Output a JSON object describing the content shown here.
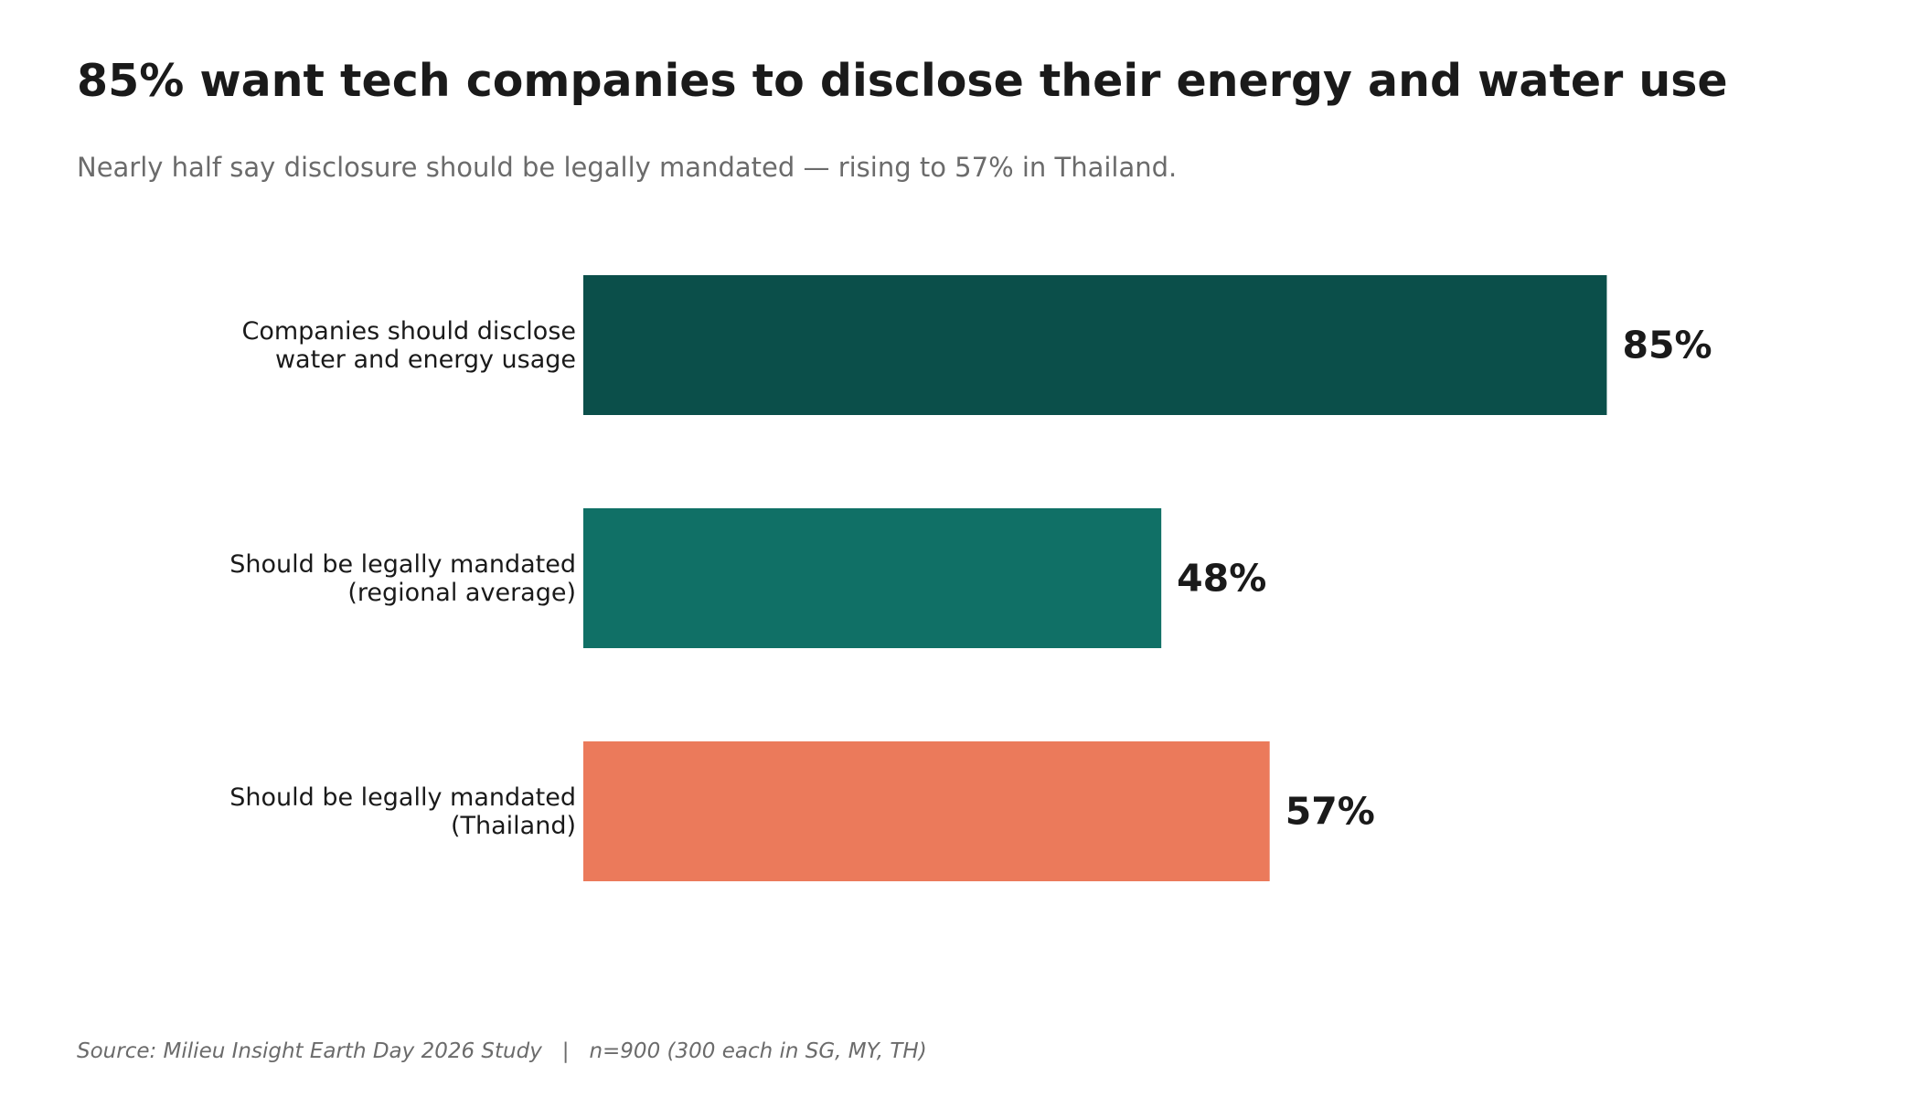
{
  "title": "85% want tech companies to disclose their energy and water use",
  "subtitle": "Nearly half say disclosure should be legally mandated — rising to 57% in Thailand.",
  "source": {
    "study": "Source: Milieu Insight Earth Day 2026 Study",
    "separator": "|",
    "sample": "n=900 (300 each in SG, MY, TH)"
  },
  "chart_data": {
    "type": "bar",
    "orientation": "horizontal",
    "title": "85% want tech companies to disclose their energy and water use",
    "subtitle": "Nearly half say disclosure should be legally mandated — rising to 57% in Thailand.",
    "xlabel": "",
    "ylabel": "",
    "xlim": [
      0,
      100
    ],
    "grid": false,
    "legend": "none",
    "categories": [
      [
        "Companies should disclose",
        "water and energy usage"
      ],
      [
        "Should be legally mandated",
        "(regional average)"
      ],
      [
        "Should be legally mandated",
        "(Thailand)"
      ]
    ],
    "values": [
      85,
      48,
      57
    ],
    "value_labels": [
      "85%",
      "48%",
      "57%"
    ],
    "colors": [
      "#0b4f4a",
      "#107066",
      "#eb7a5b"
    ]
  }
}
